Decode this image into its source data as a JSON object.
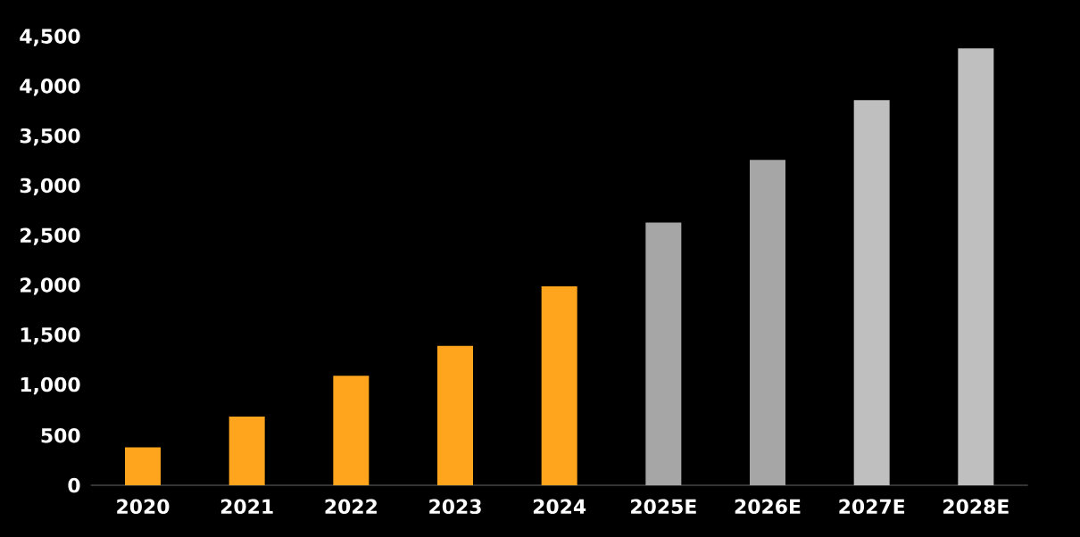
{
  "chart_data": {
    "type": "bar",
    "categories": [
      "2020",
      "2021",
      "2022",
      "2023",
      "2024",
      "2025E",
      "2026E",
      "2027E",
      "2028E"
    ],
    "values": [
      380,
      690,
      1100,
      1400,
      2000,
      2640,
      3270,
      3870,
      4390
    ],
    "colors": [
      "#ffa51d",
      "#ffa51d",
      "#ffa51d",
      "#ffa51d",
      "#ffa51d",
      "#a6a6a6",
      "#a6a6a6",
      "#bfbfbf",
      "#bfbfbf"
    ],
    "ylim": [
      0,
      4500
    ],
    "yticks": [
      {
        "value": 0,
        "label": "0"
      },
      {
        "value": 500,
        "label": "500"
      },
      {
        "value": 1000,
        "label": "1,000"
      },
      {
        "value": 1500,
        "label": "1,500"
      },
      {
        "value": 2000,
        "label": "2,000"
      },
      {
        "value": 2500,
        "label": "2,500"
      },
      {
        "value": 3000,
        "label": "3,000"
      },
      {
        "value": 3500,
        "label": "3,500"
      },
      {
        "value": 4000,
        "label": "4,000"
      },
      {
        "value": 4500,
        "label": "4,500"
      }
    ]
  }
}
